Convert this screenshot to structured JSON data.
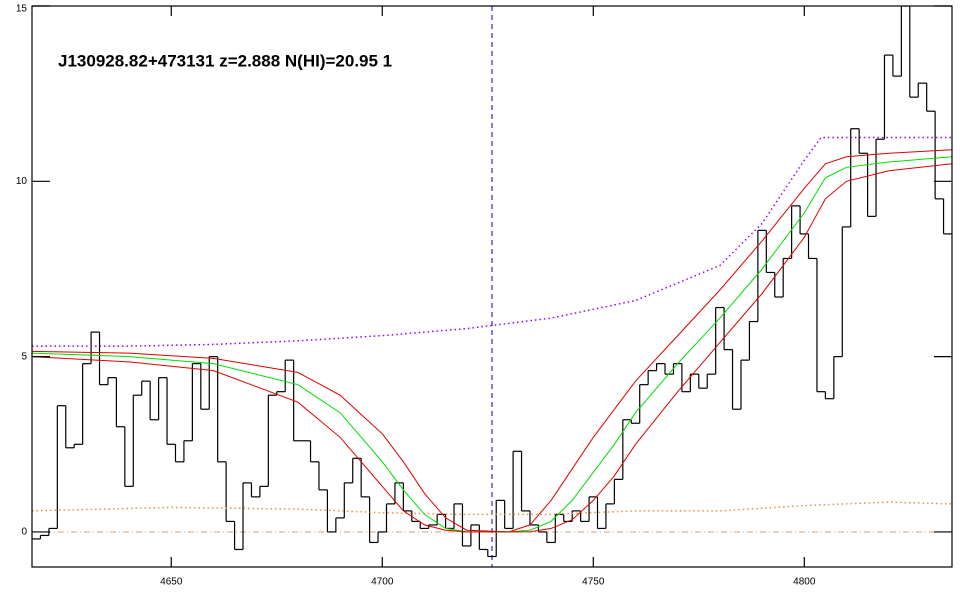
{
  "chart_data": {
    "type": "spectrum",
    "annotation": "J130928.82+473131 z=2.888 N(HI)=20.95 1",
    "xlim": [
      4617,
      4835
    ],
    "ylim": [
      -1,
      15
    ],
    "xticks": [
      4650,
      4700,
      4750,
      4800
    ],
    "yticks": [
      0,
      5,
      10,
      15
    ],
    "hline": 0,
    "hline_color": "#d8a070",
    "vline": 4726,
    "vline_color": "#0000cc",
    "series": [
      {
        "style": "step",
        "color": "#000000",
        "x": [
          4618,
          4620,
          4622,
          4624,
          4626,
          4628,
          4630,
          4632,
          4634,
          4636,
          4638,
          4640,
          4642,
          4644,
          4646,
          4648,
          4650,
          4652,
          4654,
          4656,
          4658,
          4660,
          4662,
          4664,
          4666,
          4668,
          4670,
          4672,
          4674,
          4676,
          4678,
          4680,
          4682,
          4684,
          4686,
          4688,
          4690,
          4692,
          4694,
          4696,
          4698,
          4700,
          4702,
          4704,
          4706,
          4708,
          4710,
          4712,
          4714,
          4716,
          4718,
          4720,
          4722,
          4724,
          4726,
          4728,
          4730,
          4732,
          4734,
          4736,
          4738,
          4740,
          4742,
          4744,
          4746,
          4748,
          4750,
          4752,
          4754,
          4756,
          4758,
          4760,
          4762,
          4764,
          4766,
          4768,
          4770,
          4772,
          4774,
          4776,
          4778,
          4780,
          4782,
          4784,
          4786,
          4788,
          4790,
          4792,
          4794,
          4796,
          4798,
          4800,
          4802,
          4804,
          4806,
          4808,
          4810,
          4812,
          4814,
          4816,
          4818,
          4820,
          4822,
          4824,
          4826,
          4828,
          4830,
          4832,
          4834
        ],
        "values": [
          -0.2,
          -0.1,
          0.1,
          3.6,
          2.4,
          2.5,
          4.8,
          5.7,
          4.2,
          4.4,
          3.0,
          1.3,
          3.9,
          4.3,
          3.2,
          4.4,
          2.5,
          2.0,
          2.6,
          4.8,
          3.5,
          5.0,
          2.0,
          0.3,
          -0.5,
          1.4,
          1.0,
          1.3,
          3.9,
          4.0,
          4.9,
          2.6,
          2.6,
          2.0,
          1.2,
          0.0,
          0.4,
          1.4,
          2.1,
          1.0,
          -0.3,
          0.0,
          0.8,
          1.4,
          0.6,
          0.3,
          0.1,
          0.2,
          0.5,
          0.1,
          0.8,
          -0.4,
          0.2,
          -0.5,
          -0.7,
          0.9,
          0.1,
          2.3,
          0.6,
          0.2,
          0.0,
          -0.3,
          0.5,
          0.3,
          0.6,
          0.3,
          1.0,
          0.1,
          0.8,
          1.5,
          3.2,
          3.1,
          4.2,
          4.6,
          4.8,
          4.5,
          4.8,
          4.0,
          4.5,
          4.1,
          4.5,
          6.4,
          5.2,
          3.5,
          4.9,
          6.0,
          8.6,
          7.4,
          6.7,
          7.8,
          9.3,
          8.5,
          7.8,
          4.0,
          3.8,
          5.0,
          8.7,
          11.5,
          10.8,
          9.0,
          11.2,
          13.6,
          13.0,
          15.0,
          12.4,
          12.8,
          12.0,
          9.5,
          8.5
        ]
      },
      {
        "style": "dotted",
        "color": "#9900ff",
        "x": [
          4617,
          4640,
          4660,
          4680,
          4700,
          4720,
          4740,
          4760,
          4770,
          4780,
          4790,
          4800,
          4804,
          4835
        ],
        "values": [
          5.3,
          5.3,
          5.35,
          5.45,
          5.6,
          5.8,
          6.1,
          6.6,
          7.1,
          7.6,
          8.8,
          10.6,
          11.25,
          11.25
        ]
      },
      {
        "style": "dotted",
        "color": "#e89040",
        "x": [
          4617,
          4650,
          4680,
          4700,
          4720,
          4740,
          4760,
          4780,
          4800,
          4820,
          4835
        ],
        "values": [
          0.6,
          0.7,
          0.65,
          0.55,
          0.5,
          0.5,
          0.6,
          0.6,
          0.75,
          0.85,
          0.8
        ]
      },
      {
        "style": "solid",
        "color": "#dd0000",
        "x": [
          4617,
          4640,
          4660,
          4680,
          4690,
          4700,
          4705,
          4710,
          4715,
          4720,
          4730,
          4735,
          4740,
          4745,
          4750,
          4760,
          4770,
          4780,
          4790,
          4800,
          4805,
          4810,
          4820,
          4835
        ],
        "values": [
          5.15,
          5.1,
          4.95,
          4.55,
          3.9,
          2.8,
          2.0,
          1.1,
          0.4,
          0.05,
          0,
          0.2,
          0.9,
          1.8,
          2.7,
          4.3,
          5.6,
          6.9,
          8.3,
          9.8,
          10.5,
          10.7,
          10.8,
          10.9
        ]
      },
      {
        "style": "solid",
        "color": "#00dd00",
        "x": [
          4617,
          4640,
          4660,
          4680,
          4690,
          4700,
          4705,
          4710,
          4715,
          4720,
          4730,
          4735,
          4740,
          4745,
          4750,
          4755,
          4760,
          4770,
          4780,
          4790,
          4800,
          4805,
          4810,
          4820,
          4835
        ],
        "values": [
          5.1,
          5.0,
          4.8,
          4.2,
          3.4,
          2.0,
          1.2,
          0.5,
          0.1,
          0,
          0,
          0.05,
          0.3,
          0.9,
          1.7,
          2.5,
          3.4,
          4.8,
          6.1,
          7.5,
          9.1,
          10.1,
          10.4,
          10.55,
          10.7
        ]
      },
      {
        "style": "solid",
        "color": "#dd0000",
        "x": [
          4617,
          4640,
          4660,
          4680,
          4690,
          4700,
          4705,
          4710,
          4715,
          4720,
          4735,
          4740,
          4745,
          4750,
          4755,
          4760,
          4770,
          4780,
          4790,
          4800,
          4805,
          4810,
          4820,
          4835
        ],
        "values": [
          5.0,
          4.85,
          4.6,
          3.7,
          2.7,
          1.3,
          0.6,
          0.2,
          0.05,
          0,
          0,
          0.1,
          0.35,
          0.9,
          1.6,
          2.5,
          4.0,
          5.4,
          6.8,
          8.4,
          9.5,
          10.0,
          10.3,
          10.5
        ]
      }
    ]
  }
}
